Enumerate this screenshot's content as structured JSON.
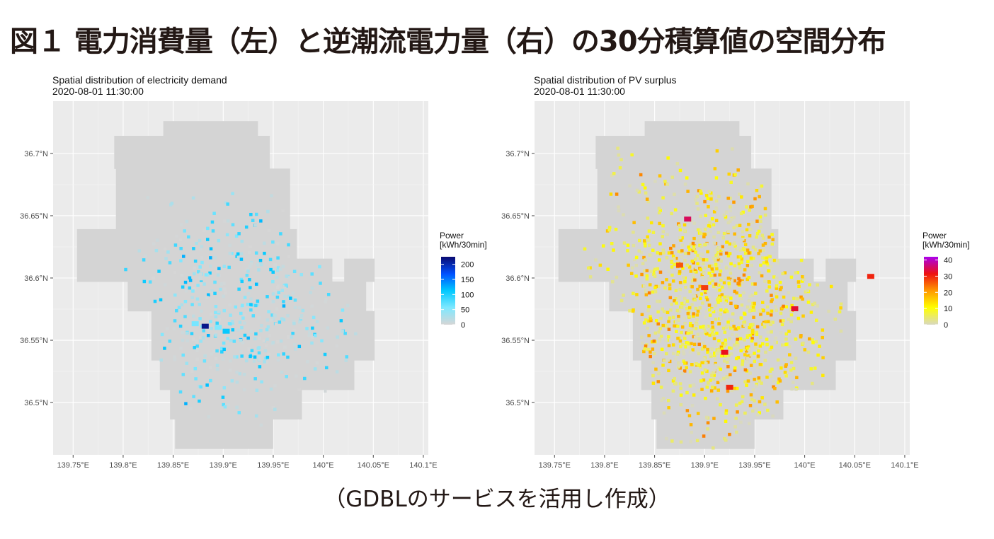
{
  "figure_title": "図１ 電力消費量（左）と逆潮流電力量（右）の30分積算値の空間分布",
  "caption": "（GDBLのサービスを活用し作成）",
  "chart_data": [
    {
      "type": "heatmap",
      "title": "Spatial distribution of electricity demand",
      "subtitle": "2020-08-01 11:30:00",
      "xlabel": "",
      "ylabel": "",
      "x_ticks": [
        "139.75°E",
        "139.8°E",
        "139.85°E",
        "139.9°E",
        "139.95°E",
        "140°E",
        "140.05°E",
        "140.1°E"
      ],
      "x_tick_values": [
        139.75,
        139.8,
        139.85,
        139.9,
        139.95,
        140.0,
        140.05,
        140.1
      ],
      "y_ticks": [
        "36.5°N",
        "36.55°N",
        "36.6°N",
        "36.65°N",
        "36.7°N"
      ],
      "y_tick_values": [
        36.5,
        36.55,
        36.6,
        36.65,
        36.7
      ],
      "xlim": [
        139.73,
        140.105
      ],
      "ylim": [
        36.458,
        36.742
      ],
      "grid": true,
      "legend": {
        "title_lines": [
          "Power",
          "[kWh/30min]"
        ],
        "ticks": [
          0,
          50,
          100,
          150,
          200
        ],
        "range": [
          0,
          225
        ],
        "colors": [
          "#d6d6d6",
          "#7fe8ff",
          "#00c8ff",
          "#0050ff",
          "#0a0a70"
        ],
        "placement": "right"
      },
      "hotspots": [
        {
          "lon": 139.882,
          "lat": 36.561,
          "value": 215
        },
        {
          "lon": 139.903,
          "lat": 36.557,
          "value": 110
        },
        {
          "lon": 139.872,
          "lat": 36.563,
          "value": 60
        },
        {
          "lon": 139.895,
          "lat": 36.56,
          "value": 55
        }
      ]
    },
    {
      "type": "heatmap",
      "title": "Spatial distribution of PV surplus",
      "subtitle": "2020-08-01 11:30:00",
      "xlabel": "",
      "ylabel": "",
      "x_ticks": [
        "139.75°E",
        "139.8°E",
        "139.85°E",
        "139.9°E",
        "139.95°E",
        "140°E",
        "140.05°E",
        "140.1°E"
      ],
      "x_tick_values": [
        139.75,
        139.8,
        139.85,
        139.9,
        139.95,
        140.0,
        140.05,
        140.1
      ],
      "y_ticks": [
        "36.5°N",
        "36.55°N",
        "36.6°N",
        "36.65°N",
        "36.7°N"
      ],
      "y_tick_values": [
        36.5,
        36.55,
        36.6,
        36.65,
        36.7
      ],
      "xlim": [
        139.73,
        140.105
      ],
      "ylim": [
        36.458,
        36.742
      ],
      "grid": true,
      "legend": {
        "title_lines": [
          "Power",
          "[kWh/30min]"
        ],
        "ticks": [
          0,
          10,
          20,
          30,
          40
        ],
        "range": [
          0,
          42
        ],
        "colors": [
          "#d9d9c0",
          "#ffff00",
          "#ff9900",
          "#ee1111",
          "#aa00ee"
        ],
        "placement": "right"
      },
      "hotspots": [
        {
          "lon": 139.92,
          "lat": 36.54,
          "value": 32
        },
        {
          "lon": 139.99,
          "lat": 36.575,
          "value": 33
        },
        {
          "lon": 139.925,
          "lat": 36.512,
          "value": 30
        },
        {
          "lon": 139.883,
          "lat": 36.647,
          "value": 35
        },
        {
          "lon": 140.066,
          "lat": 36.601,
          "value": 30
        },
        {
          "lon": 139.9,
          "lat": 36.592,
          "value": 28
        },
        {
          "lon": 139.875,
          "lat": 36.61,
          "value": 26
        }
      ]
    }
  ]
}
